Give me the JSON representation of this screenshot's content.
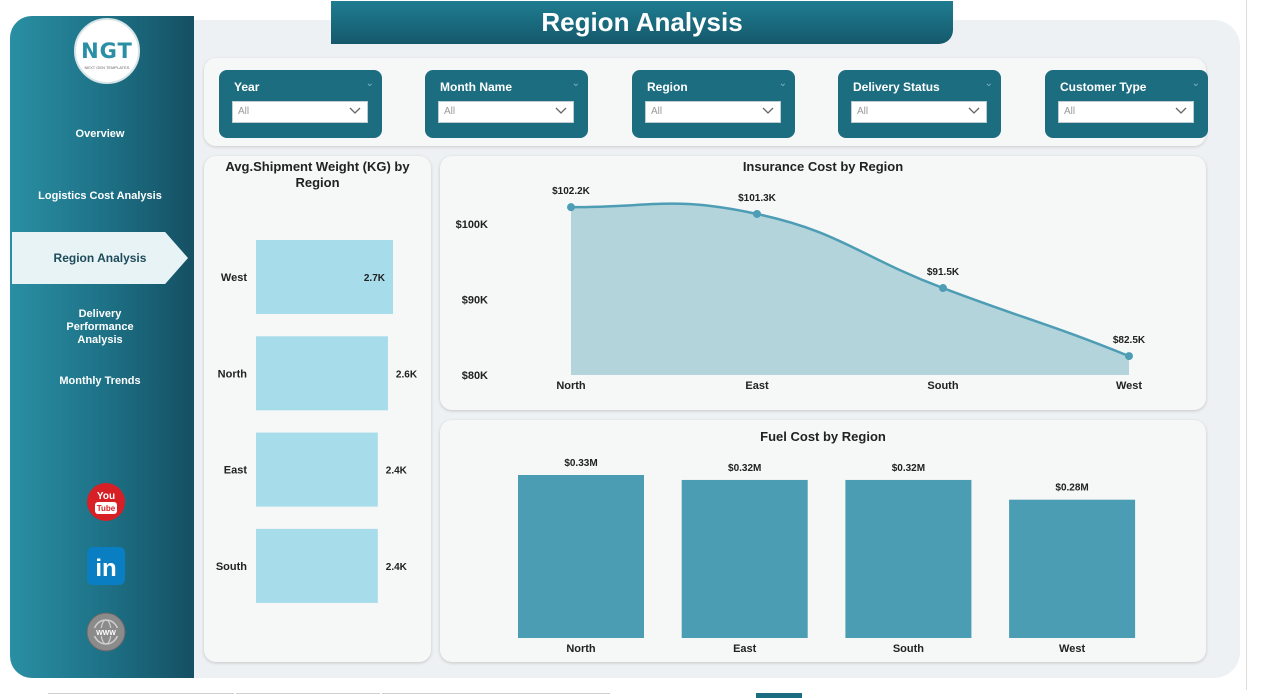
{
  "title": "Region Analysis",
  "logo": {
    "text": "NGT",
    "subtext": "NEXT GEN TEMPLATES"
  },
  "nav": [
    {
      "label": "Overview",
      "active": false
    },
    {
      "label": "Logistics Cost Analysis",
      "active": false
    },
    {
      "label": "Region Analysis",
      "active": true
    },
    {
      "label": "Delivery Performance Analysis",
      "active": false
    },
    {
      "label": "Monthly Trends",
      "active": false
    }
  ],
  "social": {
    "youtube_top": "You",
    "youtube_bottom": "Tube",
    "linkedin": "in",
    "web": "WWW"
  },
  "filters": [
    {
      "label": "Year",
      "value": "All"
    },
    {
      "label": "Month Name",
      "value": "All"
    },
    {
      "label": "Region",
      "value": "All"
    },
    {
      "label": "Delivery Status",
      "value": "All"
    },
    {
      "label": "Customer Type",
      "value": "All"
    }
  ],
  "colors": {
    "accent": "#1d6d80",
    "bar_light": "#a7dcea",
    "area": "#b4d4dc",
    "line": "#4d9db5",
    "bar_dark": "#4b9db3"
  },
  "chart_data": [
    {
      "type": "bar",
      "orientation": "horizontal",
      "title": "Avg.Shipment Weight (KG) by Region",
      "categories": [
        "West",
        "North",
        "East",
        "South"
      ],
      "values": [
        2.7,
        2.6,
        2.4,
        2.4
      ],
      "value_labels": [
        "2.7K",
        "2.6K",
        "2.4K",
        "2.4K"
      ],
      "unit": "K"
    },
    {
      "type": "area",
      "title": "Insurance Cost by Region",
      "categories": [
        "North",
        "East",
        "South",
        "West"
      ],
      "values": [
        102.2,
        101.3,
        91.5,
        82.5
      ],
      "value_labels": [
        "$102.2K",
        "$101.3K",
        "$91.5K",
        "$82.5K"
      ],
      "yticks": [
        "$100K",
        "$90K",
        "$80K"
      ],
      "ylim": [
        80,
        105
      ]
    },
    {
      "type": "bar",
      "title": "Fuel Cost by Region",
      "categories": [
        "North",
        "East",
        "South",
        "West"
      ],
      "values": [
        0.33,
        0.32,
        0.32,
        0.28
      ],
      "value_labels": [
        "$0.33M",
        "$0.32M",
        "$0.32M",
        "$0.28M"
      ]
    }
  ]
}
